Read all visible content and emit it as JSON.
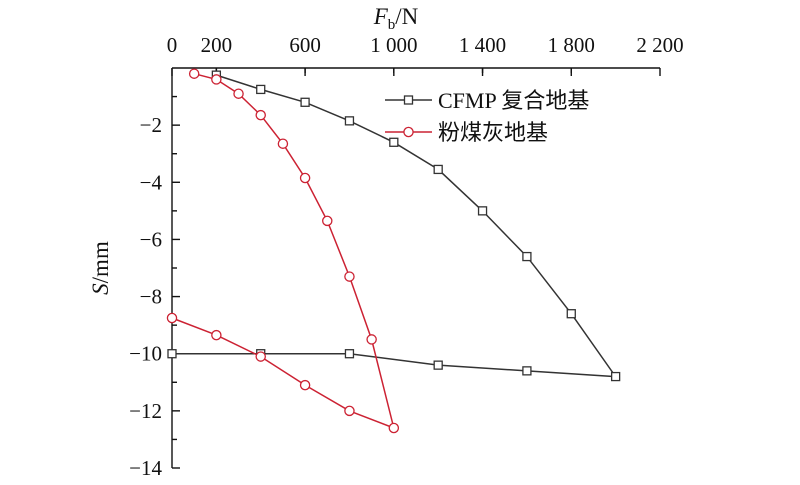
{
  "chart_data": {
    "type": "line",
    "xlabel": {
      "symbol": "F",
      "subscript": "b",
      "unit": "/N"
    },
    "ylabel": {
      "symbol": "S",
      "unit": "/mm"
    },
    "xlim": [
      0,
      2200
    ],
    "ylim": [
      -14,
      0
    ],
    "x_ticks": [
      0,
      200,
      600,
      1000,
      1400,
      1800,
      2200
    ],
    "x_tick_labels": [
      "0",
      "200",
      "600",
      "1 000",
      "1 400",
      "1 800",
      "2 200"
    ],
    "y_ticks": [
      -2,
      -4,
      -6,
      -8,
      -10,
      -12,
      -14
    ],
    "y_tick_labels": [
      "−2",
      "−4",
      "−6",
      "−8",
      "−10",
      "−12",
      "−14"
    ],
    "x_axis_position": "top",
    "grid": false,
    "legend_position": "top-right",
    "series": [
      {
        "name": "CFMP 复合地基",
        "color": "#333333",
        "marker": "square",
        "x": [
          200,
          400,
          600,
          800,
          1000,
          1200,
          1400,
          1600,
          1800,
          2000,
          1600,
          1200,
          800,
          400,
          0
        ],
        "y": [
          -0.25,
          -0.75,
          -1.2,
          -1.85,
          -2.6,
          -3.55,
          -5.0,
          -6.6,
          -8.6,
          -10.8,
          -10.6,
          -10.4,
          -10.0,
          -10.0,
          -10.0
        ]
      },
      {
        "name": "粉煤灰地基",
        "color": "#cc2233",
        "marker": "circle",
        "x": [
          100,
          200,
          300,
          400,
          500,
          600,
          700,
          800,
          900,
          1000,
          800,
          600,
          400,
          200,
          0
        ],
        "y": [
          -0.2,
          -0.4,
          -0.9,
          -1.65,
          -2.65,
          -3.85,
          -5.35,
          -7.3,
          -9.5,
          -12.6,
          -12.0,
          -11.1,
          -10.1,
          -9.35,
          -8.75
        ]
      }
    ]
  }
}
